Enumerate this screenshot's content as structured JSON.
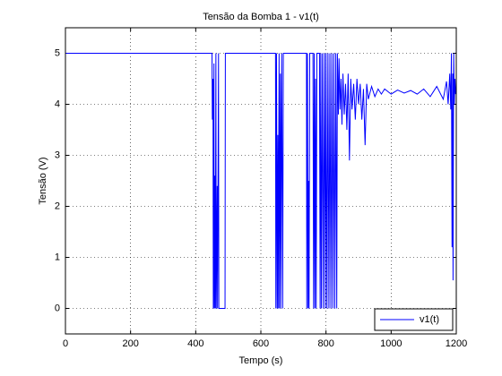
{
  "chart_data": {
    "type": "line",
    "title": "Tensão da Bomba 1 - v1(t)",
    "x_label": "Tempo (s)",
    "y_label": "Tensão (V)",
    "x": [
      0,
      450,
      451,
      453,
      454,
      456,
      457,
      459,
      460,
      462,
      463,
      466,
      467,
      470,
      471,
      490,
      491,
      645,
      646,
      648,
      650,
      652,
      653,
      656,
      657,
      660,
      661,
      664,
      667,
      669,
      740,
      741,
      743,
      745,
      747,
      748,
      750,
      760,
      762,
      764,
      766,
      768,
      770,
      772,
      780,
      782,
      784,
      786,
      789,
      792,
      795,
      798,
      800,
      803,
      806,
      809,
      812,
      815,
      818,
      821,
      824,
      827,
      830,
      833,
      835,
      838,
      840,
      843,
      846,
      849,
      852,
      856,
      860,
      864,
      868,
      872,
      876,
      880,
      885,
      890,
      895,
      900,
      905,
      910,
      915,
      920,
      925,
      930,
      940,
      950,
      960,
      970,
      980,
      1000,
      1020,
      1040,
      1060,
      1080,
      1100,
      1120,
      1140,
      1160,
      1170,
      1175,
      1180,
      1183,
      1185,
      1187,
      1189,
      1190,
      1192,
      1194,
      1196,
      1198,
      1200
    ],
    "series": [
      {
        "name": "v1(t)",
        "color": "#0000ff",
        "values": [
          5,
          5,
          3.7,
          4.5,
          0,
          4.8,
          0,
          2.6,
          0,
          5,
          0,
          2.4,
          0,
          5,
          0,
          0,
          5,
          5,
          0,
          5,
          0,
          3.4,
          0,
          5,
          0,
          4.6,
          0,
          5,
          0,
          5,
          5,
          0,
          5,
          0,
          2.5,
          0,
          5,
          5,
          0,
          5,
          0,
          4.5,
          0,
          5,
          5,
          0,
          5,
          0,
          5,
          0,
          5,
          0,
          5,
          0,
          5,
          0,
          5,
          0,
          5,
          0,
          5,
          0,
          5,
          0,
          5,
          3.8,
          4.9,
          3.9,
          4.5,
          3.6,
          4.6,
          3.8,
          4.4,
          3.5,
          4.6,
          2.9,
          4.5,
          3.9,
          4.4,
          3.7,
          4.5,
          4.0,
          4.4,
          3.7,
          4.3,
          3.2,
          4.4,
          4.1,
          4.35,
          4.15,
          4.3,
          4.2,
          4.3,
          4.2,
          4.28,
          4.22,
          4.27,
          4.2,
          4.3,
          4.15,
          4.35,
          4.1,
          4.45,
          4.0,
          4.6,
          3.9,
          5,
          1.2,
          4.6,
          0.55,
          5,
          4.0,
          4.5,
          4.2,
          4.25
        ]
      }
    ],
    "xlim": [
      0,
      1200
    ],
    "xticks": [
      0,
      200,
      400,
      600,
      800,
      1000,
      1200
    ],
    "ylim": [
      -0.5,
      5.5
    ],
    "yticks": [
      0,
      1,
      2,
      3,
      4,
      5
    ],
    "grid": true,
    "legend": "lower right"
  }
}
